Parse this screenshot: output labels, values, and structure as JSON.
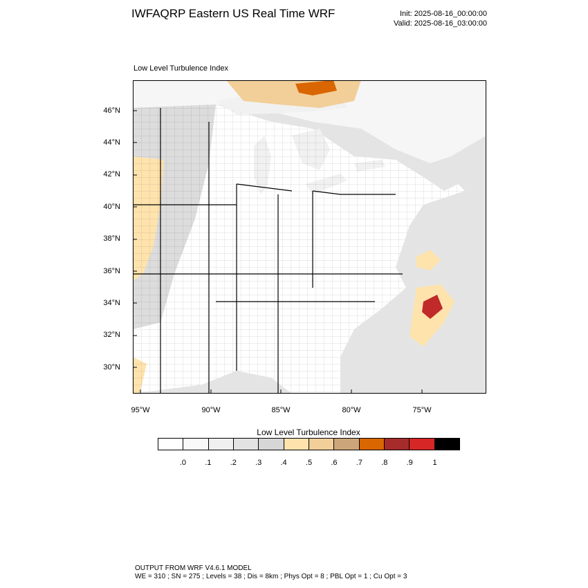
{
  "title": "IWFAQRP Eastern US Real Time WRF",
  "init": "Init: 2025-08-16_00:00:00",
  "valid": "Valid: 2025-08-16_03:00:00",
  "panel_label": "Low Level Turbulence Index",
  "lat_labels": [
    "46°N",
    "44°N",
    "42°N",
    "40°N",
    "38°N",
    "36°N",
    "34°N",
    "32°N",
    "30°N"
  ],
  "lon_labels": [
    "95°W",
    "90°W",
    "85°W",
    "80°W",
    "75°W"
  ],
  "colorbar": {
    "title": "Low Level Turbulence Index",
    "colors": [
      "#ffffff",
      "#f9f9f9",
      "#f0f0f0",
      "#e3e3e3",
      "#d6d6d6",
      "#ffe3ad",
      "#f2cf99",
      "#cca67a",
      "#d96600",
      "#a62b2b",
      "#d62626",
      "#000000"
    ],
    "labels": [
      ".0",
      ".1",
      ".2",
      ".3",
      ".4",
      ".5",
      ".6",
      ".7",
      ".8",
      ".9",
      "1"
    ]
  },
  "footer": {
    "line1": "OUTPUT FROM WRF V4.6.1 MODEL",
    "line2": "WE = 310 ; SN = 275 ; Levels = 38 ; Dis = 8km ; Phys Opt = 8 ; PBL Opt = 1 ; Cu Opt = 3"
  },
  "map_colors": {
    "lake": "#f1f1f1",
    "ocean": "#e4e4e4",
    "land": "#ffffff",
    "west_gray": "#dcdcdc",
    "light_tan": "#ffe3ad",
    "tan": "#f2cf99",
    "orange": "#d96600",
    "red": "#c02a2a"
  }
}
